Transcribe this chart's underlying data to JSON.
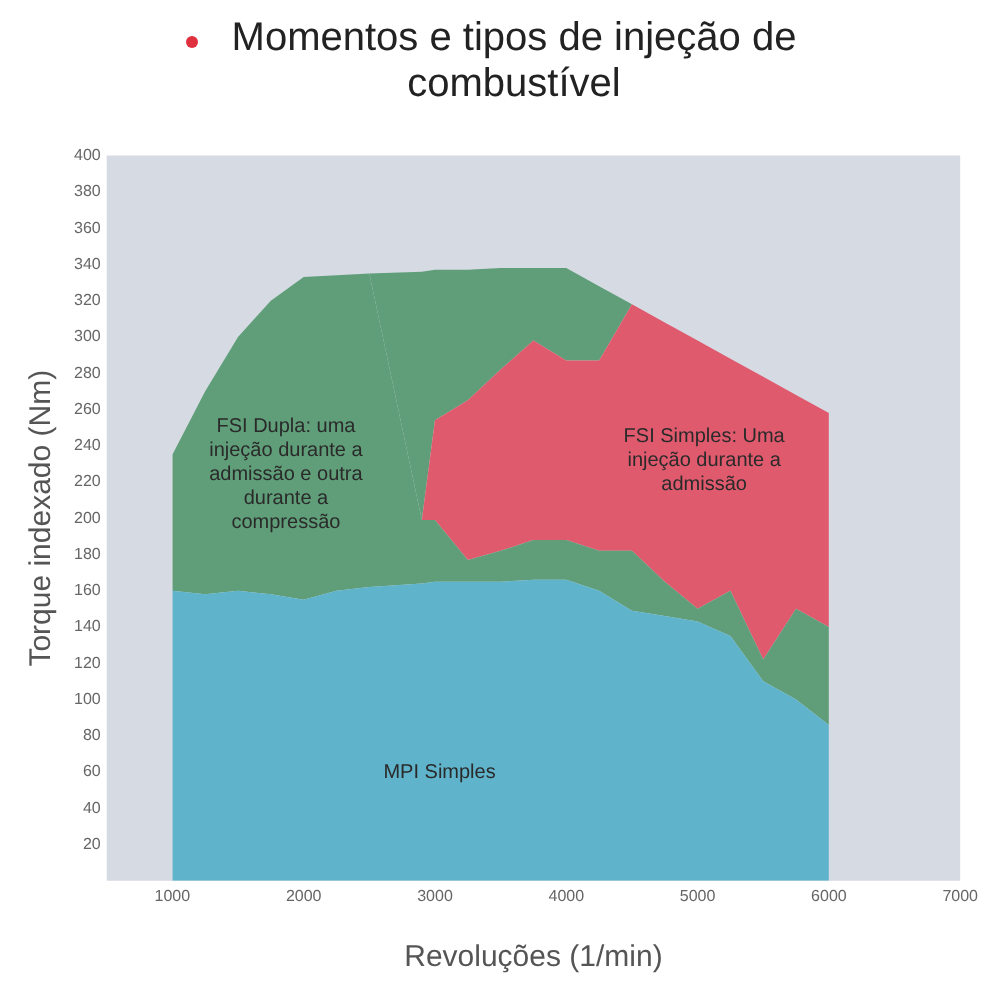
{
  "chart_data": {
    "type": "area",
    "title": "Momentos e tipos de injeção de combustível",
    "xlabel": "Revoluções (1/min)",
    "ylabel": "Torque indexado (Nm)",
    "stacked": true,
    "grid": false,
    "legend": false,
    "x": [
      1000,
      1250,
      1500,
      1750,
      2000,
      2250,
      2500,
      2900,
      3000,
      3250,
      3500,
      3750,
      4000,
      4250,
      4500,
      4750,
      5000,
      5250,
      5500,
      5750,
      6000
    ],
    "series": [
      {
        "color": "#5fb4cc",
        "values": [
          160,
          158,
          160,
          158,
          155,
          160,
          162,
          164,
          165,
          165,
          165,
          166,
          166,
          160,
          149,
          146,
          143,
          135,
          110,
          100,
          86
        ]
      },
      {
        "color": "#5f9e78",
        "values": [
          75,
          112,
          140,
          162,
          178,
          174,
          173,
          35,
          34,
          12,
          17,
          22,
          22,
          22,
          33,
          19,
          7,
          25,
          12,
          50,
          54
        ]
      },
      {
        "color": "#e05a6e",
        "values": [
          0,
          0,
          0,
          0,
          0,
          0,
          0,
          0,
          55,
          88,
          100,
          110,
          99,
          105,
          136,
          143,
          148,
          128,
          156,
          118,
          118
        ]
      },
      {
        "color": "#5f9e78",
        "values": [
          0,
          0,
          0,
          0,
          0,
          0,
          0,
          137,
          83,
          72,
          56,
          40,
          51,
          41,
          0,
          0,
          0,
          0,
          0,
          0,
          0
        ]
      }
    ],
    "xlim": [
      500,
      7000
    ],
    "xticks": [
      1000,
      2000,
      3000,
      4000,
      5000,
      6000,
      7000
    ],
    "ylim": [
      0,
      400
    ],
    "yticks": [
      20,
      40,
      60,
      80,
      100,
      120,
      140,
      160,
      180,
      200,
      220,
      240,
      260,
      280,
      300,
      320,
      340,
      360,
      380,
      400
    ],
    "annotations": [
      "FSI Dupla: uma injeção durante a admissão e outra durante a compressão",
      "FSI Simples: Uma injeção durante a admissão",
      "MPI Simples"
    ]
  }
}
